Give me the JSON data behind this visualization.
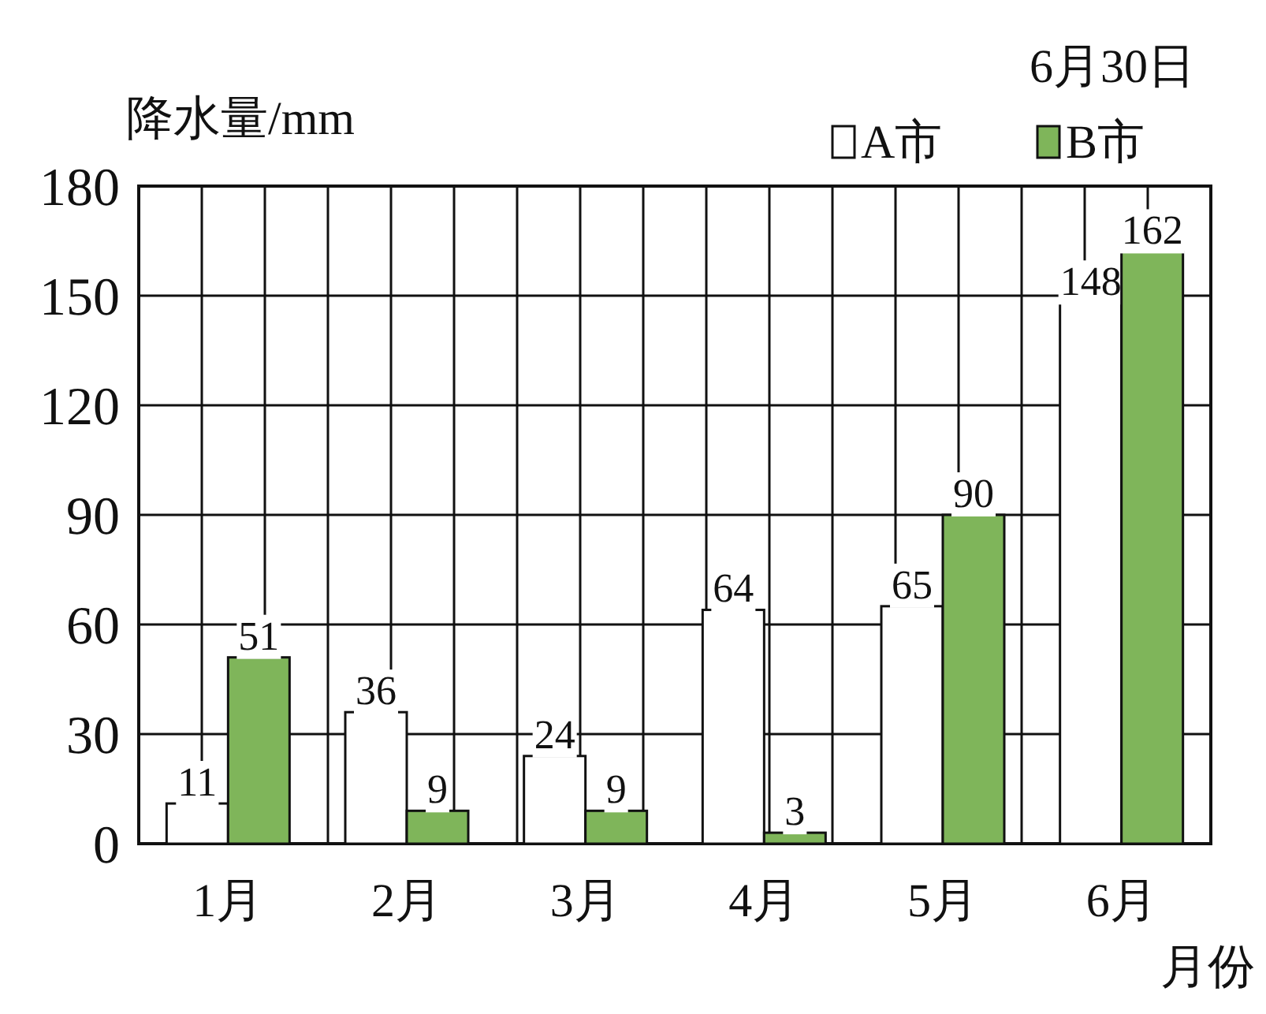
{
  "chart_data": {
    "type": "bar",
    "ylabel": "降水量/mm",
    "xlabel": "月份",
    "annotations": [
      "6月30日"
    ],
    "categories": [
      "1月",
      "2月",
      "3月",
      "4月",
      "5月",
      "6月"
    ],
    "series": [
      {
        "name": "A市",
        "color": "#ffffff",
        "values": [
          11,
          36,
          24,
          64,
          65,
          148
        ]
      },
      {
        "name": "B市",
        "color": "#7fb55a",
        "values": [
          51,
          9,
          9,
          3,
          90,
          162
        ]
      }
    ],
    "ylim": [
      0,
      180
    ],
    "yticks": [
      0,
      30,
      60,
      90,
      120,
      150,
      180
    ],
    "grid": true,
    "legend": "top right",
    "data_labels": true
  }
}
